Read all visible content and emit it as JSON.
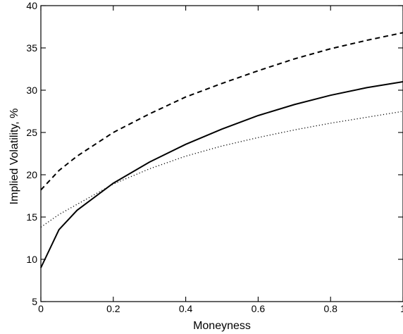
{
  "chart_data": {
    "type": "line",
    "title": "",
    "xlabel": "Moneyness",
    "ylabel": "Implied Volatility, %",
    "xlim": [
      0,
      1
    ],
    "ylim": [
      5,
      40
    ],
    "grid": false,
    "xticks": [
      "0",
      "0.2",
      "0.4",
      "0.6",
      "0.8",
      "1"
    ],
    "yticks": [
      "5",
      "10",
      "15",
      "20",
      "25",
      "30",
      "35",
      "40"
    ],
    "series": [
      {
        "style": "dashed",
        "color": "#000000",
        "x": [
          0,
          0.05,
          0.1,
          0.2,
          0.3,
          0.4,
          0.5,
          0.6,
          0.7,
          0.8,
          0.9,
          1.0
        ],
        "y": [
          18.2,
          20.5,
          22.2,
          25.0,
          27.2,
          29.2,
          30.8,
          32.3,
          33.7,
          34.9,
          35.9,
          36.8
        ]
      },
      {
        "style": "solid",
        "color": "#000000",
        "x": [
          0,
          0.05,
          0.1,
          0.2,
          0.3,
          0.4,
          0.5,
          0.6,
          0.7,
          0.8,
          0.9,
          1.0
        ],
        "y": [
          9.0,
          13.5,
          15.8,
          19.0,
          21.5,
          23.6,
          25.4,
          27.0,
          28.3,
          29.4,
          30.3,
          31.0
        ]
      },
      {
        "style": "dotted",
        "color": "#000000",
        "x": [
          0,
          0.05,
          0.1,
          0.2,
          0.3,
          0.4,
          0.5,
          0.6,
          0.7,
          0.8,
          0.9,
          1.0
        ],
        "y": [
          13.8,
          15.3,
          16.5,
          18.9,
          20.7,
          22.2,
          23.4,
          24.4,
          25.3,
          26.1,
          26.8,
          27.5
        ]
      }
    ]
  }
}
